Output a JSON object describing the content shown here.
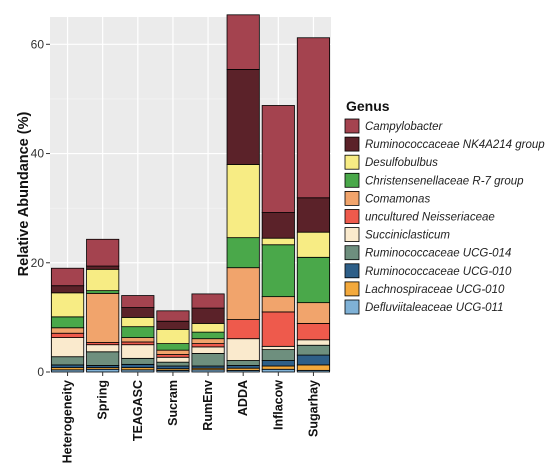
{
  "chart_data": {
    "type": "stacked-bar",
    "ylabel": "Relative Abundance (%)",
    "ylim": [
      0,
      65
    ],
    "yticks": [
      0,
      20,
      40,
      60
    ],
    "grid": true,
    "legend_position": "right",
    "legend_title": "Genus",
    "categories": [
      "Heterogeneity",
      "Spring",
      "TEAGASC",
      "Sucram",
      "RumEnv",
      "ADDA",
      "Inflacow",
      "Sugarhay"
    ],
    "series": [
      {
        "name": "Defluviitaleaceae UCG-011",
        "color": "#7fb1d6",
        "values": [
          0.4,
          0.5,
          0.4,
          0.3,
          0.4,
          0.3,
          0.5,
          0.3
        ]
      },
      {
        "name": "Lachnospiraceae UCG-010",
        "color": "#f3a93c",
        "values": [
          0.4,
          0.3,
          0.4,
          0.3,
          0.3,
          0.4,
          0.6,
          1.0
        ]
      },
      {
        "name": "Ruminococcaceae UCG-010",
        "color": "#2e5f88",
        "values": [
          0.5,
          0.4,
          0.6,
          0.5,
          0.4,
          0.5,
          1.0,
          1.8
        ]
      },
      {
        "name": "Ruminococcaceae UCG-014",
        "color": "#6e8f7e",
        "values": [
          1.5,
          2.5,
          1.1,
          0.7,
          2.3,
          0.9,
          2.0,
          1.8
        ]
      },
      {
        "name": "Succiniclasticum",
        "color": "#faeacd",
        "values": [
          3.5,
          1.3,
          2.5,
          0.9,
          1.2,
          4.0,
          0.6,
          1.0
        ]
      },
      {
        "name": "uncultured Neisseriaceae",
        "color": "#ee5a4c",
        "values": [
          0.8,
          0.4,
          0.5,
          0.5,
          0.6,
          3.5,
          6.3,
          3.0
        ]
      },
      {
        "name": "Comamonas",
        "color": "#f1a46c",
        "values": [
          1.0,
          9.0,
          0.8,
          0.8,
          0.9,
          9.5,
          2.8,
          3.8
        ]
      },
      {
        "name": "Christensenellaceae R-7 group",
        "color": "#4aa84a",
        "values": [
          2.0,
          0.5,
          2.0,
          1.2,
          1.2,
          5.5,
          9.5,
          8.3
        ]
      },
      {
        "name": "Desulfobulbus",
        "color": "#f7ec84",
        "values": [
          4.4,
          3.9,
          1.7,
          2.6,
          1.6,
          13.4,
          1.2,
          4.6
        ]
      },
      {
        "name": "Ruminococcaceae NK4A214 group",
        "color": "#5b2229",
        "values": [
          1.3,
          0.6,
          1.8,
          1.5,
          2.8,
          17.4,
          4.7,
          6.3
        ]
      },
      {
        "name": "Campylobacter",
        "color": "#a4434f",
        "values": [
          3.2,
          4.9,
          2.2,
          1.9,
          2.6,
          10.0,
          19.6,
          29.3
        ]
      }
    ]
  }
}
